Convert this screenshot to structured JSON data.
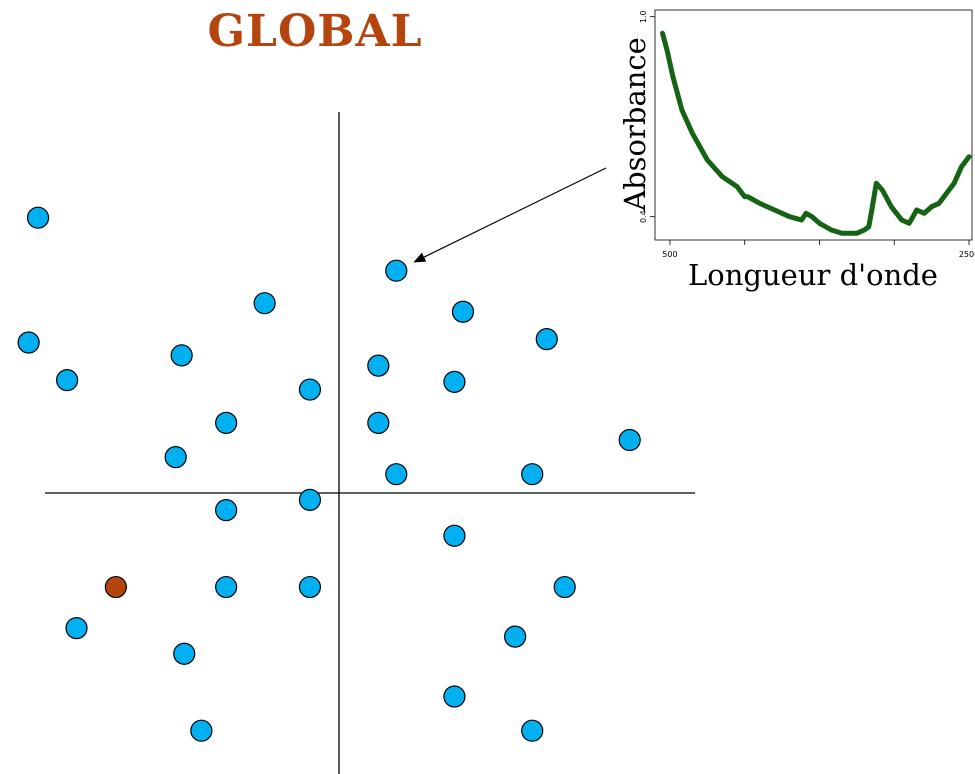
{
  "title": "GLOBAL",
  "colors": {
    "title": "#B5450F",
    "point": "#00B0F0",
    "highlight_point": "#B5450F",
    "spectrum_line": "#156314",
    "axes": "#000000"
  },
  "score_plot": {
    "points": [
      {
        "x": -3.52,
        "y": 3.22
      },
      {
        "x": -0.87,
        "y": 2.22
      },
      {
        "x": 0.67,
        "y": 2.6
      },
      {
        "x": 1.45,
        "y": 2.12
      },
      {
        "x": 2.43,
        "y": 1.8
      },
      {
        "x": -3.63,
        "y": 1.76
      },
      {
        "x": -1.84,
        "y": 1.61
      },
      {
        "x": 0.46,
        "y": 1.49
      },
      {
        "x": -3.18,
        "y": 1.32
      },
      {
        "x": -0.34,
        "y": 1.21
      },
      {
        "x": 1.35,
        "y": 1.3
      },
      {
        "x": -1.32,
        "y": 0.82
      },
      {
        "x": 0.46,
        "y": 0.82
      },
      {
        "x": 3.4,
        "y": 0.62
      },
      {
        "x": -1.91,
        "y": 0.42
      },
      {
        "x": 0.67,
        "y": 0.22
      },
      {
        "x": 2.26,
        "y": 0.22
      },
      {
        "x": -0.34,
        "y": -0.08
      },
      {
        "x": -1.32,
        "y": -0.2
      },
      {
        "x": 1.35,
        "y": -0.5
      },
      {
        "x": -2.61,
        "y": -1.1
      },
      {
        "x": -1.32,
        "y": -1.1
      },
      {
        "x": -0.34,
        "y": -1.1
      },
      {
        "x": 2.64,
        "y": -1.1
      },
      {
        "x": -3.07,
        "y": -1.58
      },
      {
        "x": 2.06,
        "y": -1.68
      },
      {
        "x": -1.81,
        "y": -1.88
      },
      {
        "x": 1.35,
        "y": -2.38
      },
      {
        "x": -1.61,
        "y": -2.78
      },
      {
        "x": 2.26,
        "y": -2.78
      }
    ],
    "highlight_index": 20,
    "arrow_target_index": 2
  },
  "chart_data": {
    "type": "line",
    "xlabel": "Longueur d'onde",
    "ylabel": "Absorbance",
    "x_ticks": [
      500,
      1000,
      1500,
      2000,
      2500
    ],
    "x_tick_labels": [
      "500",
      "",
      "",
      "",
      "2500"
    ],
    "y_ticks": [
      0.4,
      1.0
    ],
    "y_tick_labels": [
      "0.4",
      "1.0"
    ],
    "xlim": [
      400,
      2520
    ],
    "ylim": [
      0.33,
      1.02
    ],
    "series": [
      {
        "x": [
          450,
          480,
          520,
          580,
          650,
          750,
          850,
          950,
          1000,
          1020,
          1100,
          1200,
          1300,
          1380,
          1410,
          1450,
          1500,
          1580,
          1650,
          1700,
          1750,
          1800,
          1830,
          1850,
          1880,
          1920,
          1980,
          2050,
          2100,
          2150,
          2200,
          2250,
          2300,
          2350,
          2400,
          2450,
          2500
        ],
        "y": [
          0.95,
          0.9,
          0.82,
          0.72,
          0.65,
          0.57,
          0.52,
          0.49,
          0.46,
          0.46,
          0.44,
          0.42,
          0.4,
          0.39,
          0.41,
          0.4,
          0.38,
          0.36,
          0.35,
          0.35,
          0.35,
          0.36,
          0.37,
          0.42,
          0.5,
          0.48,
          0.43,
          0.39,
          0.38,
          0.42,
          0.41,
          0.43,
          0.44,
          0.47,
          0.5,
          0.55,
          0.58
        ]
      }
    ]
  }
}
